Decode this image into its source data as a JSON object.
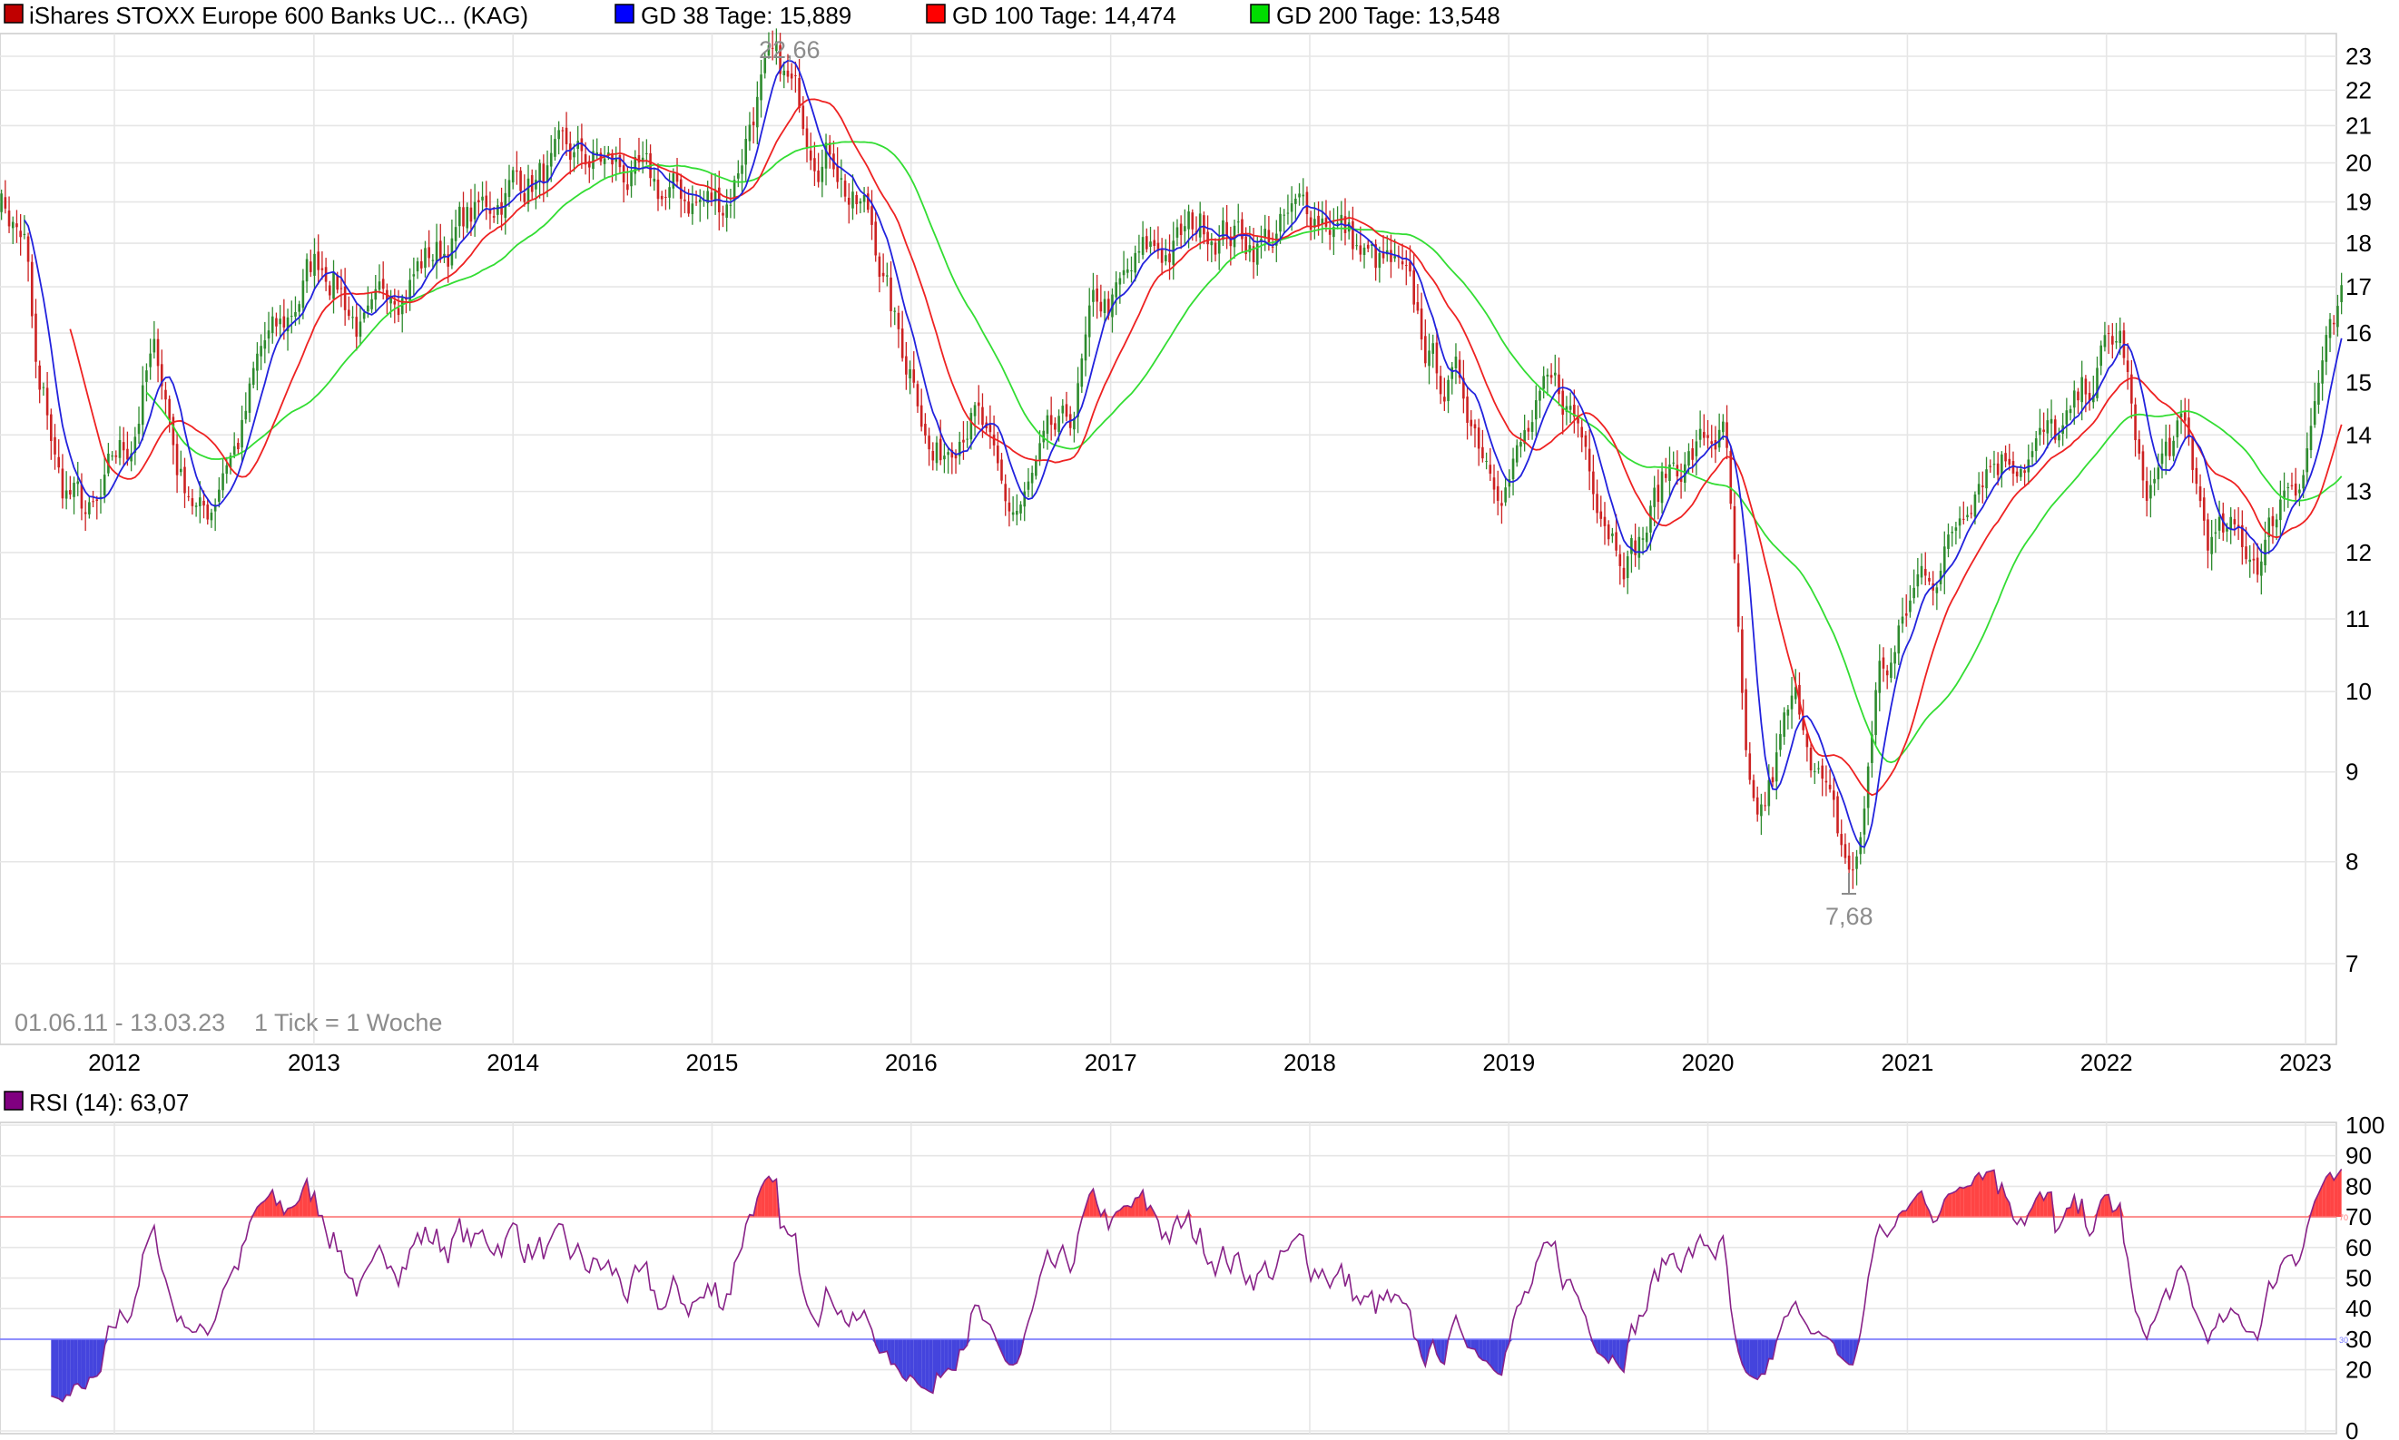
{
  "legend": {
    "instrument": {
      "label": "iShares STOXX Europe 600 Banks UC... (KAG)",
      "color": "#c00000"
    },
    "ma38": {
      "label": "GD 38 Tage: 15,889",
      "color": "#0000ff"
    },
    "ma100": {
      "label": "GD 100 Tage: 14,474",
      "color": "#ff0000"
    },
    "ma200": {
      "label": "GD 200 Tage: 13,548",
      "color": "#00dd00"
    }
  },
  "colors": {
    "candle_up": "#2e8b2e",
    "candle_down": "#cc2222",
    "ma38": "#2222dd",
    "ma100": "#ee2222",
    "ma200": "#33dd33",
    "rsi_line": "#882288",
    "rsi_upper_line": "#ff7777",
    "rsi_lower_line": "#7777ff",
    "rsi_overbought_fill": "#ff4444",
    "rsi_oversold_fill": "#4444dd",
    "annotation": "#8c8c8c",
    "rsi_legend": "#800080"
  },
  "footer_note": {
    "range": "01.06.11 - 13.03.23",
    "tick": "1 Tick = 1 Woche"
  },
  "rsi_panel": {
    "label": "RSI (14): 63,07",
    "upper_mark": "70",
    "lower_mark": "30"
  },
  "chart_data": [
    {
      "type": "candlestick",
      "scale": "log",
      "ylim": [
        6.2,
        23.6
      ],
      "xlim": [
        "2011-06-01",
        "2023-03-13"
      ],
      "x_ticks": [
        "2012",
        "2013",
        "2014",
        "2015",
        "2016",
        "2017",
        "2018",
        "2019",
        "2020",
        "2021",
        "2022",
        "2023"
      ],
      "y_ticks": [
        "7",
        "8",
        "9",
        "10",
        "11",
        "12",
        "13",
        "14",
        "15",
        "16",
        "17",
        "18",
        "19",
        "20",
        "21",
        "22",
        "23"
      ],
      "annotations": {
        "high": "22,66",
        "low": "7,68"
      },
      "price_path": [
        [
          "2011-06-01",
          19.2
        ],
        [
          "2011-07-15",
          18.3
        ],
        [
          "2011-08-20",
          14.5
        ],
        [
          "2011-10-01",
          13.0
        ],
        [
          "2011-11-25",
          12.5
        ],
        [
          "2012-01-15",
          13.6
        ],
        [
          "2012-03-15",
          15.4
        ],
        [
          "2012-05-10",
          13.2
        ],
        [
          "2012-06-15",
          12.6
        ],
        [
          "2012-08-01",
          13.8
        ],
        [
          "2012-10-15",
          15.8
        ],
        [
          "2013-01-15",
          17.6
        ],
        [
          "2013-04-15",
          16.0
        ],
        [
          "2013-06-01",
          17.2
        ],
        [
          "2013-08-15",
          17.8
        ],
        [
          "2013-10-15",
          18.6
        ],
        [
          "2014-01-15",
          19.6
        ],
        [
          "2014-06-01",
          20.0
        ],
        [
          "2014-10-15",
          19.1
        ],
        [
          "2015-01-15",
          19.0
        ],
        [
          "2015-04-15",
          22.4
        ],
        [
          "2015-08-01",
          20.6
        ],
        [
          "2015-10-01",
          18.8
        ],
        [
          "2016-01-01",
          15.4
        ],
        [
          "2016-02-15",
          13.6
        ],
        [
          "2016-04-15",
          14.6
        ],
        [
          "2016-07-01",
          12.6
        ],
        [
          "2016-10-01",
          13.8
        ],
        [
          "2016-12-15",
          16.5
        ],
        [
          "2017-04-01",
          17.8
        ],
        [
          "2017-07-01",
          18.5
        ],
        [
          "2017-10-01",
          18.1
        ],
        [
          "2018-01-20",
          18.8
        ],
        [
          "2018-05-15",
          17.4
        ],
        [
          "2018-09-15",
          15.0
        ],
        [
          "2018-12-20",
          13.5
        ],
        [
          "2019-04-01",
          14.6
        ],
        [
          "2019-08-15",
          12.2
        ],
        [
          "2019-11-15",
          13.6
        ],
        [
          "2020-01-25",
          14.0
        ],
        [
          "2020-03-25",
          8.3
        ],
        [
          "2020-06-10",
          9.7
        ],
        [
          "2020-09-25",
          7.9
        ],
        [
          "2020-11-15",
          10.3
        ],
        [
          "2021-02-15",
          11.8
        ],
        [
          "2021-06-01",
          13.7
        ],
        [
          "2021-10-01",
          13.9
        ],
        [
          "2022-01-25",
          15.8
        ],
        [
          "2022-03-10",
          13.0
        ],
        [
          "2022-05-15",
          13.9
        ],
        [
          "2022-07-15",
          12.2
        ],
        [
          "2022-10-01",
          12.0
        ],
        [
          "2022-12-15",
          13.4
        ],
        [
          "2023-02-15",
          15.7
        ],
        [
          "2023-03-13",
          16.3
        ]
      ]
    },
    {
      "type": "line",
      "title": "RSI (14): 63,07",
      "ylim": [
        0,
        100
      ],
      "y_ticks": [
        "0",
        "20",
        "30",
        "40",
        "50",
        "60",
        "70",
        "80",
        "90",
        "100"
      ],
      "reference_lines": [
        70,
        30
      ],
      "current_value": 63.07
    }
  ]
}
